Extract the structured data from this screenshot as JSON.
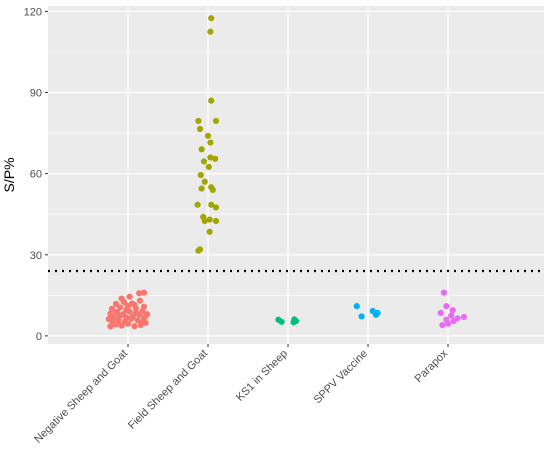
{
  "chart_data": {
    "type": "scatter",
    "title": "",
    "xlabel": "",
    "ylabel": "S/P%",
    "ylim": [
      -3,
      122
    ],
    "y_ticks": [
      0,
      30,
      60,
      90,
      120
    ],
    "grid": true,
    "legend": "none",
    "panel_background": "#ebebeb",
    "grid_color": "#ffffff",
    "categories": [
      "Negative Sheep and Goat",
      "Field Sheep and Goat",
      "KS1 in Sheep",
      "SPPV Vaccine",
      "Parapox"
    ],
    "cutoff": 24,
    "series": [
      {
        "category": "Negative Sheep and Goat",
        "color": "#f8766d",
        "points": [
          [
            -0.22,
            3.5
          ],
          [
            -0.15,
            4.2
          ],
          [
            -0.08,
            3.8
          ],
          [
            0.0,
            4.5
          ],
          [
            0.08,
            3.6
          ],
          [
            0.16,
            4.0
          ],
          [
            0.22,
            4.8
          ],
          [
            -0.2,
            5.5
          ],
          [
            -0.12,
            6.0
          ],
          [
            -0.04,
            5.2
          ],
          [
            0.04,
            6.3
          ],
          [
            0.12,
            5.8
          ],
          [
            0.2,
            6.5
          ],
          [
            -0.18,
            7.0
          ],
          [
            -0.1,
            7.5
          ],
          [
            -0.02,
            6.8
          ],
          [
            0.06,
            7.2
          ],
          [
            0.14,
            7.8
          ],
          [
            0.21,
            7.0
          ],
          [
            -0.22,
            8.2
          ],
          [
            -0.14,
            8.8
          ],
          [
            -0.06,
            8.0
          ],
          [
            0.02,
            9.0
          ],
          [
            0.1,
            8.5
          ],
          [
            0.18,
            9.2
          ],
          [
            -0.2,
            10.0
          ],
          [
            -0.1,
            10.5
          ],
          [
            0.0,
            11.0
          ],
          [
            0.1,
            10.2
          ],
          [
            0.2,
            10.8
          ],
          [
            -0.15,
            11.8
          ],
          [
            -0.05,
            12.5
          ],
          [
            0.05,
            12.0
          ],
          [
            0.15,
            13.0
          ],
          [
            -0.08,
            13.8
          ],
          [
            0.02,
            14.5
          ],
          [
            0.14,
            15.8
          ],
          [
            0.2,
            16.0
          ],
          [
            -0.12,
            4.6
          ],
          [
            0.18,
            5.0
          ],
          [
            -0.24,
            6.2
          ],
          [
            0.24,
            8.0
          ],
          [
            -0.02,
            9.6
          ],
          [
            0.08,
            11.5
          ]
        ]
      },
      {
        "category": "Field Sheep and Goat",
        "color": "#a3a500",
        "points": [
          [
            0.04,
            117.5
          ],
          [
            0.03,
            112.5
          ],
          [
            0.04,
            87.0
          ],
          [
            -0.12,
            79.5
          ],
          [
            0.1,
            79.5
          ],
          [
            -0.1,
            76.5
          ],
          [
            0.0,
            74.0
          ],
          [
            0.03,
            71.5
          ],
          [
            -0.08,
            69.0
          ],
          [
            0.03,
            66.0
          ],
          [
            0.09,
            65.5
          ],
          [
            -0.05,
            64.5
          ],
          [
            0.01,
            62.5
          ],
          [
            -0.09,
            59.5
          ],
          [
            -0.04,
            57.0
          ],
          [
            0.04,
            55.0
          ],
          [
            -0.08,
            54.5
          ],
          [
            0.06,
            54.0
          ],
          [
            -0.13,
            48.5
          ],
          [
            0.04,
            48.5
          ],
          [
            0.1,
            47.5
          ],
          [
            -0.06,
            44.0
          ],
          [
            0.02,
            43.0
          ],
          [
            -0.04,
            42.5
          ],
          [
            0.1,
            42.5
          ],
          [
            0.02,
            38.5
          ],
          [
            -0.1,
            32.0
          ],
          [
            -0.12,
            31.5
          ]
        ]
      },
      {
        "category": "KS1 in Sheep",
        "color": "#00bf7d",
        "points": [
          [
            -0.12,
            6.0
          ],
          [
            -0.08,
            5.2
          ],
          [
            0.08,
            6.1
          ],
          [
            0.1,
            5.5
          ],
          [
            0.07,
            5.0
          ]
        ]
      },
      {
        "category": "SPPV Vaccine",
        "color": "#00b0f6",
        "points": [
          [
            -0.14,
            11.0
          ],
          [
            -0.08,
            7.2
          ],
          [
            0.06,
            9.2
          ],
          [
            0.1,
            7.8
          ],
          [
            0.12,
            8.5
          ]
        ]
      },
      {
        "category": "Parapox",
        "color": "#e76bf3",
        "points": [
          [
            -0.05,
            16.0
          ],
          [
            -0.02,
            11.0
          ],
          [
            0.06,
            9.5
          ],
          [
            -0.09,
            8.5
          ],
          [
            0.04,
            7.5
          ],
          [
            0.12,
            6.5
          ],
          [
            0.2,
            7.0
          ],
          [
            -0.02,
            6.0
          ],
          [
            0.07,
            5.5
          ],
          [
            -0.07,
            4.0
          ],
          [
            0.0,
            4.5
          ]
        ]
      }
    ]
  }
}
